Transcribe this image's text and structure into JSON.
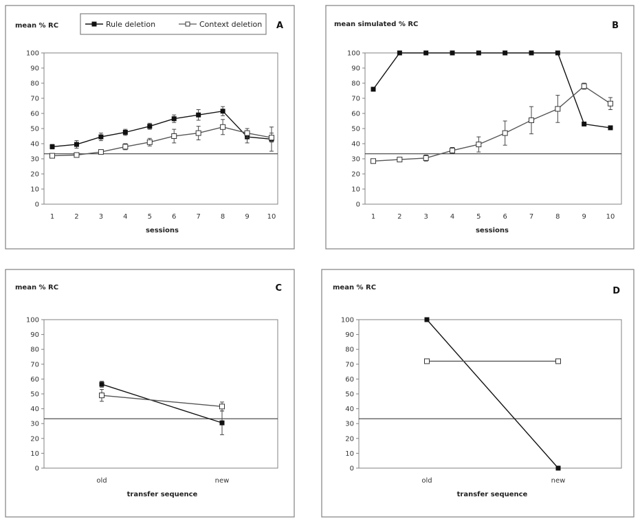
{
  "colors": {
    "filled": "#111111",
    "open_fill": "#ffffff",
    "open_stroke": "#333333",
    "line_filled": "#111111",
    "line_open": "#555555"
  },
  "legend": {
    "items": [
      {
        "label": "Rule deletion",
        "marker": "filled-square"
      },
      {
        "label": "Context deletion",
        "marker": "open-square"
      }
    ]
  },
  "chart_data": [
    {
      "panel": "A",
      "type": "line",
      "ylabel": "mean % RC",
      "xlabel": "sessions",
      "x": [
        "1",
        "2",
        "3",
        "4",
        "5",
        "6",
        "7",
        "8",
        "9",
        "10"
      ],
      "ylim": [
        0,
        100
      ],
      "yticks": [
        0,
        10,
        20,
        30,
        40,
        50,
        60,
        70,
        80,
        90,
        100
      ],
      "reference_line": 33.3,
      "series": [
        {
          "name": "Rule deletion",
          "marker": "filled",
          "values": [
            38,
            39.5,
            44.5,
            47.5,
            51.5,
            56.5,
            59,
            61.5,
            44.5,
            43
          ],
          "errors": [
            1.5,
            2.5,
            2.5,
            2,
            2,
            2.5,
            3.5,
            3,
            4,
            8
          ]
        },
        {
          "name": "Context deletion",
          "marker": "open",
          "values": [
            32,
            32.5,
            34.5,
            38,
            41,
            45,
            47,
            51,
            47,
            44
          ],
          "errors": [
            1,
            1,
            1.5,
            2,
            2.5,
            4.5,
            4.5,
            5,
            3,
            3
          ]
        }
      ]
    },
    {
      "panel": "B",
      "type": "line",
      "ylabel": "mean simulated % RC",
      "xlabel": "sessions",
      "x": [
        "1",
        "2",
        "3",
        "4",
        "5",
        "6",
        "7",
        "8",
        "9",
        "10"
      ],
      "ylim": [
        0,
        100
      ],
      "yticks": [
        0,
        10,
        20,
        30,
        40,
        50,
        60,
        70,
        80,
        90,
        100
      ],
      "reference_line": 33.3,
      "series": [
        {
          "name": "Rule deletion",
          "marker": "filled",
          "values": [
            76,
            100,
            100,
            100,
            100,
            100,
            100,
            100,
            53,
            50.5
          ],
          "errors": [
            0,
            0,
            0,
            0,
            0,
            0,
            0,
            0,
            0,
            0
          ]
        },
        {
          "name": "Context deletion",
          "marker": "open",
          "values": [
            28.5,
            29.5,
            30.5,
            35.5,
            39.5,
            47,
            55.5,
            63,
            78,
            66.5
          ],
          "errors": [
            1,
            1,
            2,
            2,
            5,
            8,
            9,
            9,
            2,
            4
          ]
        }
      ]
    },
    {
      "panel": "C",
      "type": "line",
      "ylabel": "mean % RC",
      "xlabel": "transfer sequence",
      "x": [
        "old",
        "new"
      ],
      "ylim": [
        0,
        100
      ],
      "yticks": [
        0,
        10,
        20,
        30,
        40,
        50,
        60,
        70,
        80,
        90,
        100
      ],
      "reference_line": 33.3,
      "series": [
        {
          "name": "Rule deletion",
          "marker": "filled",
          "values": [
            56.5,
            30.5
          ],
          "errors": [
            2,
            8
          ]
        },
        {
          "name": "Context deletion",
          "marker": "open",
          "values": [
            49,
            41.5
          ],
          "errors": [
            4,
            3
          ]
        }
      ]
    },
    {
      "panel": "D",
      "type": "line",
      "ylabel": "mean % RC",
      "xlabel": "transfer sequence",
      "x": [
        "old",
        "new"
      ],
      "ylim": [
        0,
        100
      ],
      "yticks": [
        0,
        10,
        20,
        30,
        40,
        50,
        60,
        70,
        80,
        90,
        100
      ],
      "reference_line": 33.3,
      "series": [
        {
          "name": "Rule deletion",
          "marker": "filled",
          "values": [
            100,
            0
          ],
          "errors": [
            0,
            0
          ]
        },
        {
          "name": "Context deletion",
          "marker": "open",
          "values": [
            72,
            72
          ],
          "errors": [
            0,
            0
          ]
        }
      ]
    }
  ]
}
